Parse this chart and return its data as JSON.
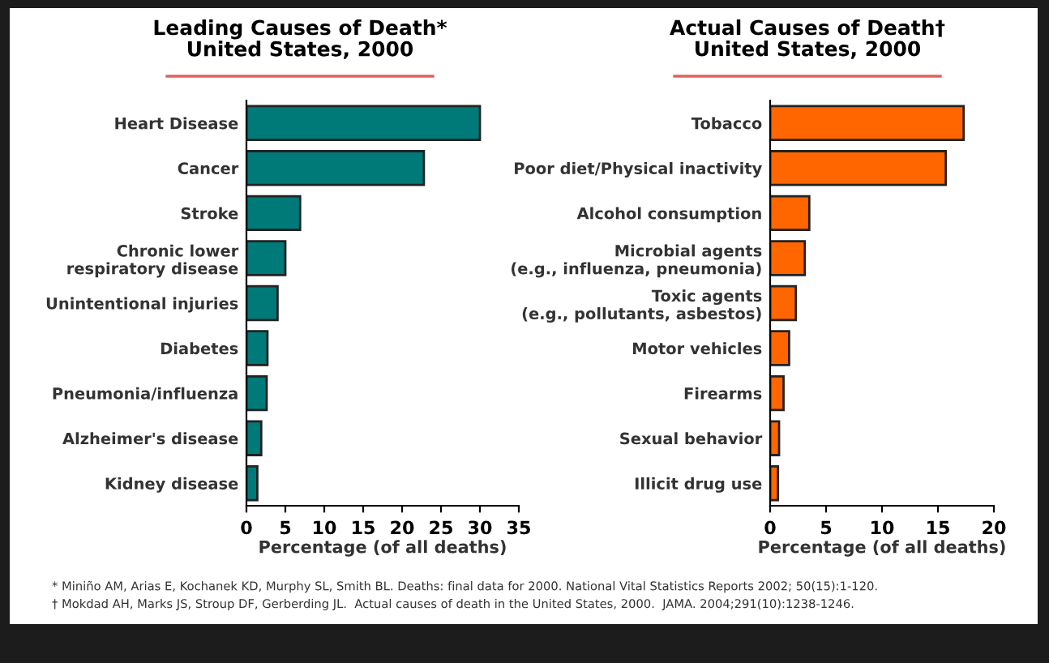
{
  "chart_data": [
    {
      "type": "bar",
      "orientation": "horizontal",
      "title": "Leading Causes of Death*\nUnited States, 2000",
      "xlabel": "Percentage (of all deaths)",
      "categories": [
        "Heart Disease",
        "Cancer",
        "Stroke",
        "Chronic lower\nrespiratory disease",
        "Unintentional injuries",
        "Diabetes",
        "Pneumonia/influenza",
        "Alzheimer's disease",
        "Kidney disease"
      ],
      "values": [
        30.0,
        22.8,
        6.9,
        5.0,
        4.0,
        2.7,
        2.6,
        1.9,
        1.4
      ],
      "color": "#007a78",
      "xlim": [
        0,
        35
      ],
      "xticks": [
        0,
        5,
        10,
        15,
        20,
        25,
        30,
        35
      ],
      "grid": false,
      "legend": false,
      "annotations": [
        "* Miniño AM, Arias E, Kochanek KD, Murphy SL, Smith BL. Deaths: final data for 2000. National Vital Statistics Reports 2002; 50(15):1-120."
      ]
    },
    {
      "type": "bar",
      "orientation": "horizontal",
      "title": "Actual Causes of Death†\nUnited States, 2000",
      "xlabel": "Percentage (of all deaths)",
      "categories": [
        "Tobacco",
        "Poor diet/Physical inactivity",
        "Alcohol consumption",
        "Microbial agents\n(e.g., influenza, pneumonia)",
        "Toxic agents\n(e.g., pollutants, asbestos)",
        "Motor vehicles",
        "Firearms",
        "Sexual behavior",
        "Illicit drug use"
      ],
      "values": [
        17.3,
        15.7,
        3.5,
        3.1,
        2.3,
        1.7,
        1.2,
        0.8,
        0.7
      ],
      "color": "#ff6600",
      "xlim": [
        0,
        20
      ],
      "xticks": [
        0,
        5,
        10,
        15,
        20
      ],
      "grid": false,
      "legend": false,
      "annotations": [
        "† Mokdad AH, Marks JS, Stroup DF, Gerberding JL.  Actual causes of death in the United States, 2000.  JAMA. 2004;291(10):1238-1246."
      ]
    }
  ]
}
